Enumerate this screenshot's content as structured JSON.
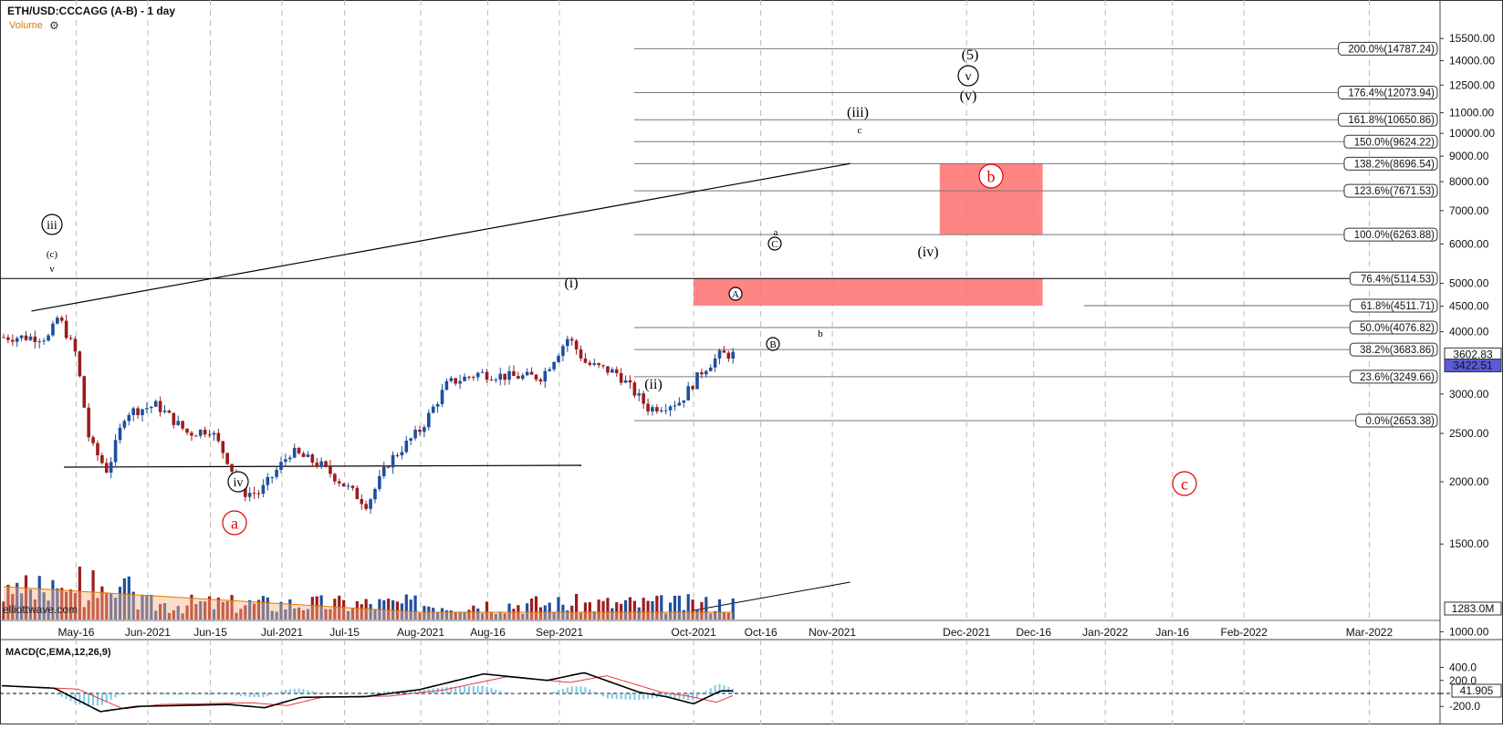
{
  "header": {
    "title": "ETH/USD:CCCAGG (A-B) - 1 day",
    "volume_label": "Volume",
    "settings_icon": "gear-icon",
    "watermark": "elliottwave.com"
  },
  "macd": {
    "title": "MACD(C,EMA,12,26,9)",
    "ticks": [
      "400.0",
      "200.0",
      "-200.0"
    ],
    "value_badge": "41.905",
    "colors": {
      "macd": "#000000",
      "signal": "#e83a3a",
      "histogram": "#7ec8e8"
    }
  },
  "price_axis": {
    "ticks": [
      "15500.00",
      "14000.00",
      "12500.00",
      "11000.00",
      "10000.00",
      "9000.00",
      "8000.00",
      "7000.00",
      "6000.00",
      "5000.00",
      "4500.00",
      "4000.00",
      "3000.00",
      "2500.00",
      "2000.00",
      "1500.00",
      "1000.00"
    ],
    "badges": [
      {
        "text": "3602.83",
        "price": 3602.83,
        "style": "outline"
      },
      {
        "text": "3422.51",
        "price": 3422.51,
        "style": "filled"
      }
    ],
    "volume_badge": "1283.0M"
  },
  "time_axis": {
    "labels": [
      "May-16",
      "Jun-2021",
      "Jun-15",
      "Jul-2021",
      "Jul-15",
      "Aug-2021",
      "Aug-16",
      "Sep-2021",
      "Oct-2021",
      "Oct-16",
      "Nov-2021",
      "Dec-2021",
      "Dec-16",
      "Jan-2022",
      "Jan-16",
      "Feb-2022",
      "Mar-2022"
    ]
  },
  "fib_levels": [
    {
      "label": "200.0%(14787.24)",
      "price": 14787.24
    },
    {
      "label": "176.4%(12073.94)",
      "price": 12073.94
    },
    {
      "label": "161.8%(10650.86)",
      "price": 10650.86
    },
    {
      "label": "150.0%(9624.22)",
      "price": 9624.22
    },
    {
      "label": "138.2%(8696.54)",
      "price": 8696.54
    },
    {
      "label": "123.6%(7671.53)",
      "price": 7671.53
    },
    {
      "label": "100.0%(6263.88)",
      "price": 6263.88
    },
    {
      "label": "76.4%(5114.53)",
      "price": 5114.53
    },
    {
      "label": "61.8%(4511.71)",
      "price": 4511.71
    },
    {
      "label": "50.0%(4076.82)",
      "price": 4076.82
    },
    {
      "label": "38.2%(3683.86)",
      "price": 3683.86
    },
    {
      "label": "23.6%(3249.66)",
      "price": 3249.66
    },
    {
      "label": "0.0%(2653.38)",
      "price": 2653.38
    }
  ],
  "wave_labels": {
    "iii_circle": "iii",
    "iv_circle": "iv",
    "v_circle": "v",
    "five_paren": "(5)",
    "v_paren": "(v)",
    "iii_paren": "(iii)",
    "iv_paren": "(iv)",
    "i_paren": "(i)",
    "ii_paren": "(ii)",
    "c_paren": "(c)",
    "v_small": "v",
    "a_red": "a",
    "b_red": "b",
    "c_red": "c",
    "A_circle": "A",
    "B_circle": "B",
    "C_circle": "C",
    "a_small": "a",
    "b_small": "b",
    "c_small": "c"
  },
  "chart_data": {
    "type": "candlestick",
    "symbol": "ETH/USD:CCCAGG (A-B)",
    "interval": "1 day",
    "price_scale": "log",
    "ylim": [
      900,
      16500
    ],
    "x_range": [
      "2021-05-06",
      "2022-03-16"
    ],
    "candles": [
      {
        "date": "2021-05-10",
        "close": 3900
      },
      {
        "date": "2021-05-12",
        "close": 4300
      },
      {
        "date": "2021-05-16",
        "close": 3600
      },
      {
        "date": "2021-05-19",
        "close": 2400
      },
      {
        "date": "2021-05-23",
        "close": 2100
      },
      {
        "date": "2021-05-27",
        "close": 2750
      },
      {
        "date": "2021-06-03",
        "close": 2850
      },
      {
        "date": "2021-06-10",
        "close": 2500
      },
      {
        "date": "2021-06-15",
        "close": 2550
      },
      {
        "date": "2021-06-19",
        "close": 2200
      },
      {
        "date": "2021-06-22",
        "close": 1900
      },
      {
        "date": "2021-06-26",
        "close": 1900
      },
      {
        "date": "2021-07-03",
        "close": 2300
      },
      {
        "date": "2021-07-10",
        "close": 2150
      },
      {
        "date": "2021-07-20",
        "close": 1800
      },
      {
        "date": "2021-07-25",
        "close": 2200
      },
      {
        "date": "2021-08-01",
        "close": 2550
      },
      {
        "date": "2021-08-07",
        "close": 3150
      },
      {
        "date": "2021-08-14",
        "close": 3300
      },
      {
        "date": "2021-08-21",
        "close": 3250
      },
      {
        "date": "2021-08-28",
        "close": 3250
      },
      {
        "date": "2021-09-03",
        "close": 3900
      },
      {
        "date": "2021-09-07",
        "close": 3450
      },
      {
        "date": "2021-09-14",
        "close": 3300
      },
      {
        "date": "2021-09-21",
        "close": 2800
      },
      {
        "date": "2021-09-28",
        "close": 2900
      },
      {
        "date": "2021-10-03",
        "close": 3350
      },
      {
        "date": "2021-10-07",
        "close": 3600
      }
    ],
    "trendlines": [
      {
        "name": "upper-channel",
        "from": {
          "date": "2021-05-06",
          "price": 4400
        },
        "to": {
          "date": "2021-11-05",
          "price": 8700
        }
      },
      {
        "name": "lower-support",
        "from": {
          "date": "2021-05-14",
          "price": 1750
        },
        "to": {
          "date": "2021-08-30",
          "price": 1760
        }
      },
      {
        "name": "volume-trend",
        "from": {
          "date": "2021-10-01",
          "volume_frac": 0.1
        },
        "to": {
          "date": "2021-11-05",
          "volume_frac": 0.5
        }
      }
    ],
    "target_boxes": [
      {
        "name": "b-target-box",
        "x0": "2021-11-25",
        "x1": "2021-12-18",
        "y0": 6263.88,
        "y1": 8696.54,
        "color": "#ff7070"
      },
      {
        "name": "iv-target-box",
        "x0": "2021-10-01",
        "x1": "2021-12-18",
        "y0": 4511.71,
        "y1": 5114.53,
        "color": "#ff7070"
      }
    ],
    "grid": true
  }
}
